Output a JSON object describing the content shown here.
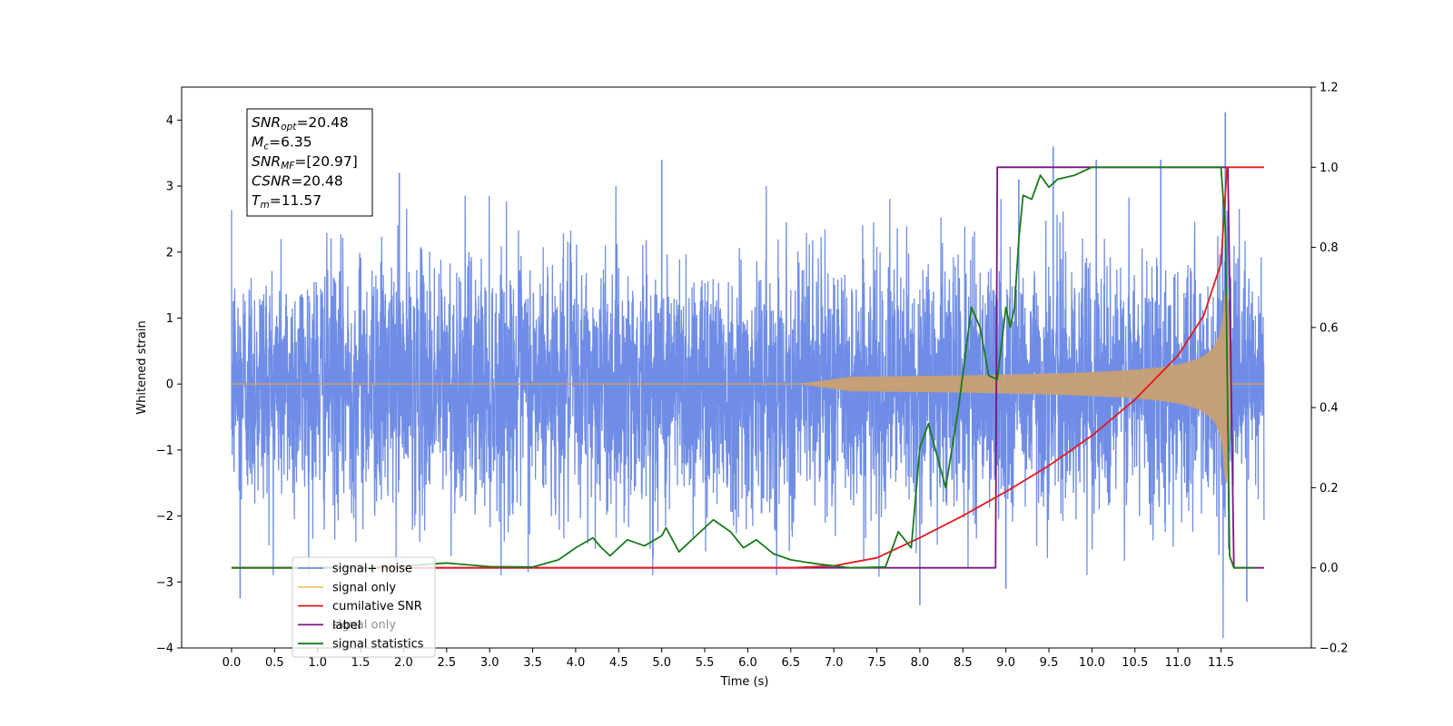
{
  "chart_data": {
    "type": "line",
    "xlabel": "Time (s)",
    "ylabel": "Whitened strain",
    "xlim": [
      -0.58,
      12.55
    ],
    "ylim": [
      -4.0,
      4.5
    ],
    "y2lim": [
      -0.2,
      1.2
    ],
    "x_ticks": [
      0.0,
      0.5,
      1.0,
      1.5,
      2.0,
      2.5,
      3.0,
      3.5,
      4.0,
      4.5,
      5.0,
      5.5,
      6.0,
      6.5,
      7.0,
      7.5,
      8.0,
      8.5,
      9.0,
      9.5,
      10.0,
      10.5,
      11.0,
      11.5
    ],
    "x_tick_labels": [
      "0.0",
      "0.5",
      "1.0",
      "1.5",
      "2.0",
      "2.5",
      "3.0",
      "3.5",
      "4.0",
      "4.5",
      "5.0",
      "5.5",
      "6.0",
      "6.5",
      "7.0",
      "7.5",
      "8.0",
      "8.5",
      "9.0",
      "9.5",
      "10.0",
      "10.5",
      "11.0",
      "11.5"
    ],
    "y_ticks": [
      -4,
      -3,
      -2,
      -1,
      0,
      1,
      2,
      3,
      4
    ],
    "y_tick_labels": [
      "−4",
      "−3",
      "−2",
      "−1",
      "0",
      "1",
      "2",
      "3",
      "4"
    ],
    "y2_ticks": [
      -0.2,
      0.0,
      0.2,
      0.4,
      0.6,
      0.8,
      1.0,
      1.2
    ],
    "y2_tick_labels": [
      "−0.2",
      "0.0",
      "0.2",
      "0.4",
      "0.6",
      "0.8",
      "1.0",
      "1.2"
    ],
    "grid": false,
    "legend_position": "lower-left",
    "series": [
      {
        "name": "signal+ noise",
        "axis": "left",
        "color": "#6f8de6",
        "description": "whitened noise, amplitude ~1.5 typical, peaks ~3.3 to 4.1",
        "t_range": [
          0.0,
          12.0
        ],
        "peaks": [
          [
            1.95,
            3.2
          ],
          [
            5.0,
            3.4
          ],
          [
            9.15,
            3.1
          ],
          [
            9.55,
            3.6
          ],
          [
            10.05,
            3.4
          ],
          [
            10.8,
            3.4
          ],
          [
            11.55,
            4.12
          ],
          [
            8.0,
            -3.35
          ],
          [
            0.1,
            -3.25
          ],
          [
            9.0,
            -3.1
          ],
          [
            11.8,
            -3.3
          ]
        ]
      },
      {
        "name": "signal only",
        "axis": "left",
        "color": "#c9a073",
        "description": "chirp, envelope grows from 0 near t=7.0 to ~1.5 at merger (t=11.57), rings down to 0 by t=11.62"
      },
      {
        "name": "cumilative SNR",
        "axis": "right",
        "color": "#e31a1c",
        "x": [
          0.0,
          6.5,
          7.0,
          7.5,
          8.0,
          8.5,
          9.0,
          9.5,
          10.0,
          10.5,
          11.0,
          11.3,
          11.5,
          11.57,
          12.0
        ],
        "y": [
          0.0,
          0.0,
          0.005,
          0.025,
          0.075,
          0.13,
          0.19,
          0.255,
          0.33,
          0.42,
          0.53,
          0.63,
          0.76,
          1.0,
          1.0
        ]
      },
      {
        "name": "label",
        "axis": "right",
        "color": "#7b1580",
        "x": [
          0.0,
          8.88,
          8.9,
          11.57,
          11.58,
          11.65,
          12.0
        ],
        "y": [
          0.0,
          0.0,
          1.0,
          1.0,
          1.0,
          0.0,
          0.0
        ]
      },
      {
        "name": "signal statistics",
        "axis": "right",
        "color": "#1a7a1a",
        "x": [
          0.0,
          1.5,
          2.0,
          2.5,
          3.0,
          3.5,
          3.8,
          4.0,
          4.2,
          4.3,
          4.4,
          4.5,
          4.6,
          4.8,
          5.0,
          5.05,
          5.2,
          5.4,
          5.6,
          5.8,
          5.95,
          6.1,
          6.3,
          6.5,
          6.8,
          7.2,
          7.6,
          7.75,
          7.9,
          8.0,
          8.1,
          8.3,
          8.45,
          8.6,
          8.7,
          8.8,
          8.9,
          9.0,
          9.05,
          9.1,
          9.15,
          9.2,
          9.3,
          9.4,
          9.5,
          9.6,
          9.8,
          10.0,
          10.5,
          11.0,
          11.5,
          11.55,
          11.6,
          11.65,
          11.9
        ],
        "y": [
          0.0,
          0.0,
          0.005,
          0.012,
          0.003,
          0.002,
          0.02,
          0.05,
          0.075,
          0.05,
          0.03,
          0.05,
          0.07,
          0.055,
          0.08,
          0.1,
          0.04,
          0.08,
          0.12,
          0.09,
          0.05,
          0.07,
          0.035,
          0.02,
          0.01,
          0.0,
          0.002,
          0.09,
          0.05,
          0.3,
          0.36,
          0.2,
          0.4,
          0.65,
          0.6,
          0.48,
          0.47,
          0.65,
          0.6,
          0.65,
          0.82,
          0.93,
          0.92,
          0.98,
          0.95,
          0.97,
          0.98,
          1.0,
          1.0,
          1.0,
          1.0,
          0.85,
          0.03,
          0.0,
          0.0
        ]
      }
    ],
    "legend": [
      {
        "label": "signal+ noise",
        "color": "#6f8de6"
      },
      {
        "label": "signal only",
        "color": "#f5c27a"
      },
      {
        "label": "cumilative SNR",
        "color": "#e31a1c"
      },
      {
        "label": "label",
        "color": "#7b1580"
      },
      {
        "label": "signal statistics",
        "color": "#1a7a1a"
      }
    ],
    "ghost_text": "signal only",
    "annotation": {
      "lines": [
        {
          "sym": "SNR",
          "sub": "opt",
          "val": "=20.48"
        },
        {
          "sym": "M",
          "sub": "c",
          "val": "=6.35"
        },
        {
          "sym": "SNR",
          "sub": "MF",
          "val": "=[20.97]"
        },
        {
          "sym": "CSNR",
          "sub": "",
          "val": "=20.48"
        },
        {
          "sym": "T",
          "sub": "m",
          "val": "=11.57"
        }
      ]
    }
  }
}
